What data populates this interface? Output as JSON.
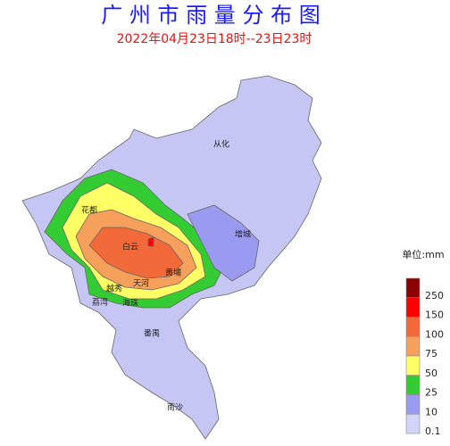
{
  "title": "广 州 市 雨 量 分 布 图",
  "subtitle": "2022年04月23日18时--23日23时",
  "districts": [
    {
      "name": "从化"
    },
    {
      "name": "花都"
    },
    {
      "name": "增城"
    },
    {
      "name": "白云"
    },
    {
      "name": "黄埔"
    },
    {
      "name": "越秀"
    },
    {
      "name": "天河"
    },
    {
      "name": "荔湾"
    },
    {
      "name": "海珠"
    },
    {
      "name": "番禺"
    },
    {
      "name": "南沙"
    }
  ],
  "legend": {
    "unit": "单位:mm",
    "levels": [
      250,
      150,
      100,
      75,
      50,
      25,
      10,
      0.1
    ],
    "colors": [
      "#8b0000",
      "#ff0000",
      "#f26a3a",
      "#f7a05c",
      "#ffff66",
      "#33cc33",
      "#9a9af0",
      "#d4d4fa"
    ]
  }
}
